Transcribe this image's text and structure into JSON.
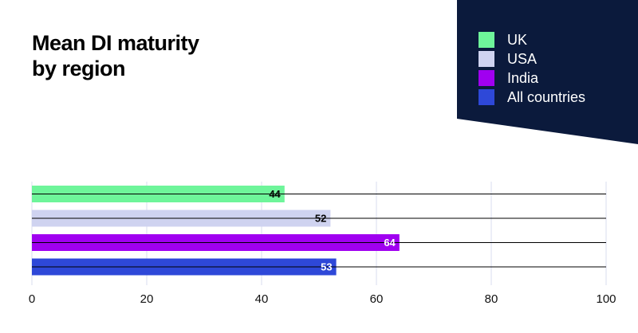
{
  "colors": {
    "panel": "#0b1a3c",
    "grid": "#d9dcef",
    "axis": "#000000"
  },
  "chart_data": {
    "type": "bar",
    "orientation": "horizontal",
    "title": [
      "Mean DI maturity",
      "by region"
    ],
    "categories": [
      "UK",
      "USA",
      "India",
      "All countries"
    ],
    "values": [
      44,
      52,
      64,
      53
    ],
    "colors": [
      "#6ef59a",
      "#cfd3f0",
      "#a000f0",
      "#2e48d8"
    ],
    "label_colors": [
      "#000000",
      "#000000",
      "#ffffff",
      "#ffffff"
    ],
    "xlim": [
      0,
      100
    ],
    "xticks": [
      0,
      20,
      40,
      60,
      80,
      100
    ],
    "xlabel": "",
    "ylabel": "",
    "grid": true,
    "legend": "top-right"
  }
}
